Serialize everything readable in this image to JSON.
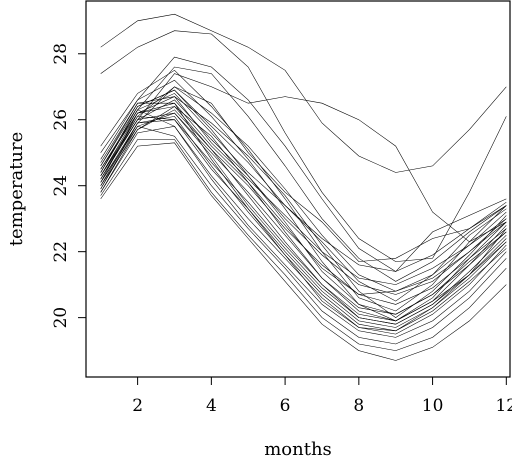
{
  "chart_data": {
    "type": "line",
    "xlabel": "months",
    "ylabel": "temperature",
    "xlim": [
      0.6,
      12.1
    ],
    "ylim": [
      18.2,
      29.6
    ],
    "xticks": [
      2,
      4,
      6,
      8,
      10,
      12
    ],
    "yticks": [
      20,
      22,
      24,
      26,
      28
    ],
    "x": [
      1,
      2,
      3,
      4,
      5,
      6,
      7,
      8,
      9,
      10,
      11,
      12
    ],
    "series": [
      {
        "values": [
          28.2,
          29.0,
          29.2,
          28.7,
          28.2,
          27.5,
          25.9,
          24.9,
          24.4,
          24.6,
          25.7,
          27.0
        ]
      },
      {
        "values": [
          27.4,
          28.2,
          28.7,
          28.6,
          27.6,
          25.6,
          23.8,
          22.4,
          21.7,
          21.8,
          23.8,
          26.1
        ]
      },
      {
        "values": [
          25.0,
          26.6,
          27.9,
          27.6,
          26.6,
          25.2,
          23.6,
          22.1,
          21.4,
          22.6,
          23.1,
          23.6
        ]
      },
      {
        "values": [
          24.3,
          26.0,
          27.4,
          27.0,
          26.5,
          26.7,
          26.5,
          26.0,
          25.2,
          23.2,
          22.3,
          22.9
        ]
      },
      {
        "values": [
          24.2,
          26.1,
          27.0,
          26.5,
          25.0,
          23.8,
          22.9,
          21.7,
          21.8,
          22.4,
          22.7,
          23.4
        ]
      },
      {
        "values": [
          24.5,
          26.3,
          26.8,
          25.6,
          24.4,
          23.4,
          22.3,
          21.1,
          20.5,
          21.3,
          22.5,
          23.3
        ]
      },
      {
        "values": [
          24.1,
          26.2,
          26.5,
          25.2,
          24.1,
          22.8,
          21.5,
          20.7,
          20.8,
          21.2,
          22.0,
          23.0
        ]
      },
      {
        "values": [
          23.9,
          25.8,
          26.2,
          25.0,
          23.8,
          22.5,
          21.2,
          20.3,
          20.1,
          20.7,
          21.6,
          22.6
        ]
      },
      {
        "values": [
          24.0,
          25.9,
          26.0,
          24.7,
          23.5,
          22.2,
          21.0,
          20.1,
          19.9,
          20.5,
          21.3,
          22.4
        ]
      },
      {
        "values": [
          24.3,
          26.1,
          26.0,
          24.5,
          23.3,
          22.0,
          20.8,
          19.9,
          19.7,
          20.3,
          21.2,
          22.3
        ]
      },
      {
        "values": [
          23.8,
          25.6,
          25.8,
          24.3,
          23.0,
          21.8,
          20.6,
          19.7,
          19.5,
          20.1,
          21.0,
          22.2
        ]
      },
      {
        "values": [
          24.4,
          26.3,
          25.8,
          24.2,
          22.8,
          21.6,
          20.4,
          19.6,
          19.4,
          19.9,
          20.8,
          22.0
        ]
      },
      {
        "values": [
          24.1,
          25.8,
          25.5,
          24.0,
          22.7,
          21.5,
          20.2,
          19.4,
          19.2,
          19.7,
          20.6,
          21.8
        ]
      },
      {
        "values": [
          23.7,
          25.4,
          25.4,
          23.8,
          22.5,
          21.3,
          20.0,
          19.2,
          19.0,
          19.4,
          20.3,
          21.5
        ]
      },
      {
        "values": [
          23.6,
          25.2,
          25.3,
          23.7,
          22.4,
          21.1,
          19.8,
          19.0,
          18.7,
          19.1,
          19.9,
          21.0
        ]
      },
      {
        "values": [
          24.6,
          26.5,
          26.7,
          25.3,
          24.2,
          23.1,
          22.0,
          21.2,
          21.0,
          21.5,
          22.2,
          23.0
        ]
      },
      {
        "values": [
          24.4,
          26.4,
          26.9,
          25.8,
          24.7,
          23.4,
          22.4,
          21.6,
          21.4,
          21.9,
          22.7,
          23.5
        ]
      },
      {
        "values": [
          24.2,
          26.0,
          26.6,
          25.4,
          24.3,
          23.0,
          21.9,
          21.0,
          20.7,
          21.1,
          22.0,
          22.9
        ]
      },
      {
        "values": [
          24.0,
          25.7,
          26.3,
          25.1,
          24.0,
          22.7,
          21.6,
          20.7,
          20.4,
          20.9,
          21.8,
          22.7
        ]
      },
      {
        "values": [
          24.3,
          26.2,
          26.7,
          25.9,
          24.9,
          23.7,
          22.2,
          20.8,
          20.0,
          20.8,
          21.9,
          23.1
        ]
      },
      {
        "values": [
          25.2,
          26.8,
          27.5,
          26.4,
          25.1,
          23.6,
          22.0,
          20.6,
          20.2,
          21.0,
          22.3,
          23.4
        ]
      },
      {
        "values": [
          24.8,
          26.6,
          27.2,
          26.1,
          24.8,
          23.3,
          21.7,
          20.4,
          19.9,
          20.6,
          21.8,
          22.9
        ]
      },
      {
        "values": [
          24.5,
          26.2,
          26.4,
          25.1,
          23.7,
          22.3,
          21.0,
          20.0,
          19.8,
          20.4,
          21.4,
          22.5
        ]
      },
      {
        "values": [
          23.9,
          25.9,
          26.1,
          24.6,
          23.2,
          21.9,
          20.7,
          19.8,
          19.6,
          20.2,
          21.1,
          22.1
        ]
      },
      {
        "values": [
          24.2,
          26.0,
          26.2,
          24.9,
          23.4,
          22.1,
          20.9,
          20.0,
          19.8,
          20.4,
          21.3,
          22.3
        ]
      },
      {
        "values": [
          24.7,
          26.5,
          26.5,
          24.8,
          23.3,
          21.9,
          20.5,
          19.7,
          19.6,
          20.3,
          21.3,
          22.7
        ]
      },
      {
        "values": [
          24.1,
          25.9,
          27.0,
          26.2,
          25.2,
          23.9,
          22.5,
          21.3,
          20.8,
          21.3,
          22.2,
          23.2
        ]
      },
      {
        "values": [
          24.4,
          26.3,
          27.6,
          27.4,
          26.1,
          24.6,
          23.0,
          21.8,
          21.1,
          21.7,
          22.6,
          23.4
        ]
      },
      {
        "values": [
          23.8,
          25.7,
          26.4,
          25.5,
          24.1,
          22.6,
          21.2,
          20.2,
          19.9,
          20.5,
          21.6,
          22.8
        ]
      },
      {
        "values": [
          24.6,
          26.4,
          26.9,
          25.7,
          24.3,
          22.9,
          21.4,
          20.4,
          20.1,
          20.7,
          21.7,
          22.6
        ]
      }
    ]
  }
}
